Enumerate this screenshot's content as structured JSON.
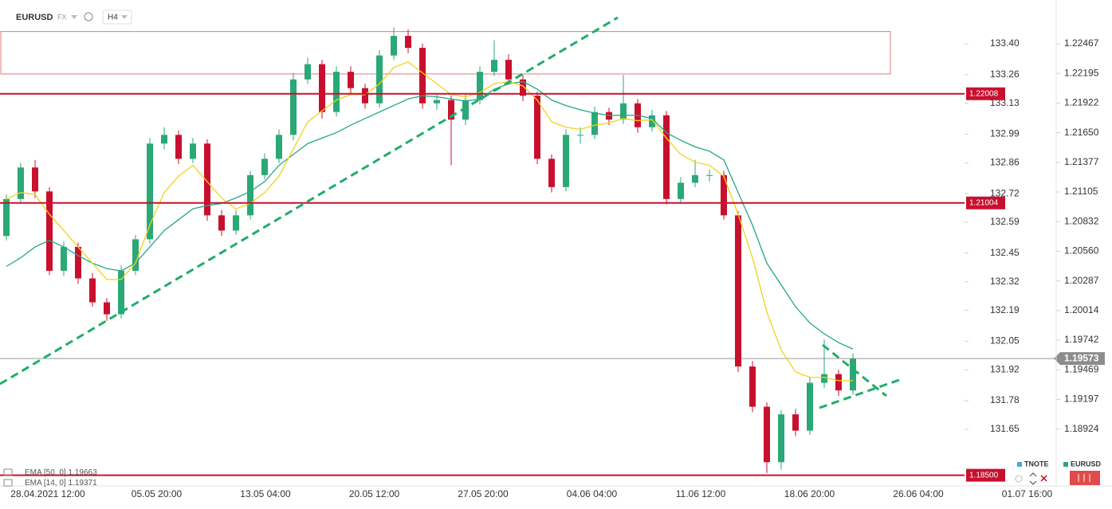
{
  "chart_data": {
    "type": "candlestick",
    "symbol": "EURUSD",
    "market": "FX",
    "timeframe": "H4",
    "ylim": [
      1.18402,
      1.22797
    ],
    "yticks": [
      1.22467,
      1.22195,
      1.21922,
      {
        "value": 1.2165,
        "label": "1.21650"
      },
      1.21377,
      1.21105,
      1.20832,
      {
        "value": 1.2056,
        "label": "1.20560"
      },
      1.20287,
      1.20014,
      1.19742,
      1.19469,
      1.19197,
      1.18924
    ],
    "y2lim": [
      131.393,
      133.563
    ],
    "y2ticks": [
      {
        "value": 133.4,
        "label": "133.40"
      },
      133.26,
      133.13,
      132.99,
      132.86,
      132.72,
      132.59,
      132.45,
      132.32,
      132.19,
      132.05,
      131.92,
      131.78,
      131.65
    ],
    "xaxis_labels": [
      "28.04.2021 12:00",
      "05.05 20:00",
      "13.05 04:00",
      "20.05 12:00",
      "27.05 20:00",
      "04.06 04:00",
      "11.06 12:00",
      "18.06 20:00",
      "26.06 04:00",
      "01.07 16:00"
    ],
    "up_color": "#2aa876",
    "down_color": "#c8102e",
    "candles": {
      "open": [
        1.207,
        1.2104,
        1.2133,
        1.2111,
        1.2038,
        1.206,
        1.2031,
        1.2009,
        1.1998,
        1.2038,
        1.2067,
        1.2155,
        1.2163,
        1.2141,
        1.2155,
        1.2089,
        1.2075,
        1.2089,
        1.2126,
        1.2141,
        1.2163,
        1.2214,
        1.2228,
        1.2184,
        1.2221,
        1.2206,
        1.2192,
        1.2236,
        1.2254,
        1.2243,
        1.2192,
        1.2195,
        1.2177,
        1.2195,
        1.2221,
        1.2232,
        1.2214,
        1.2199,
        1.2141,
        1.2115,
        1.2163,
        1.2163,
        1.2184,
        1.2177,
        1.2192,
        1.217,
        1.2181,
        1.2104,
        1.2119,
        1.2126,
        1.2126,
        1.2089,
        1.195,
        1.1913,
        1.1862,
        1.1906,
        1.1891,
        1.1935,
        1.1943,
        1.1928
      ],
      "high": [
        1.2108,
        1.2137,
        1.214,
        1.2115,
        1.2065,
        1.2064,
        1.2036,
        1.2013,
        1.2043,
        1.2071,
        1.216,
        1.217,
        1.2167,
        1.216,
        1.2159,
        1.2094,
        1.2094,
        1.213,
        1.2146,
        1.2168,
        1.222,
        1.2234,
        1.2232,
        1.2226,
        1.2226,
        1.221,
        1.2241,
        1.2262,
        1.226,
        1.2247,
        1.22,
        1.2199,
        1.22,
        1.2226,
        1.225,
        1.2237,
        1.2218,
        1.2203,
        1.2145,
        1.2168,
        1.217,
        1.2189,
        1.2188,
        1.2218,
        1.2196,
        1.2186,
        1.2185,
        1.2124,
        1.214,
        1.2131,
        1.213,
        1.2093,
        1.1955,
        1.1917,
        1.191,
        1.1911,
        1.194,
        1.1975,
        1.1947,
        1.1962
      ],
      "low": [
        1.2066,
        1.21,
        1.2105,
        1.2034,
        1.2033,
        1.2026,
        1.2005,
        1.1992,
        1.1994,
        1.2034,
        1.2063,
        1.215,
        1.2136,
        1.2137,
        1.2084,
        1.207,
        1.2071,
        1.2085,
        1.2122,
        1.2137,
        1.2158,
        1.221,
        1.2178,
        1.218,
        1.22,
        1.2187,
        1.2188,
        1.2232,
        1.2238,
        1.2187,
        1.2186,
        1.2135,
        1.2172,
        1.2191,
        1.2217,
        1.2209,
        1.2194,
        1.2136,
        1.211,
        1.2111,
        1.2155,
        1.2159,
        1.2172,
        1.2173,
        1.2165,
        1.2166,
        1.2099,
        1.21,
        1.2115,
        1.212,
        1.2085,
        1.1945,
        1.1908,
        1.1852,
        1.1855,
        1.1886,
        1.1887,
        1.193,
        1.1923,
        1.1924
      ],
      "close": [
        1.2104,
        1.2133,
        1.2111,
        1.2038,
        1.206,
        1.2031,
        1.2009,
        1.1998,
        1.2038,
        1.2067,
        1.2155,
        1.2163,
        1.2141,
        1.2155,
        1.2089,
        1.2075,
        1.2089,
        1.2126,
        1.2141,
        1.2163,
        1.2214,
        1.2228,
        1.2184,
        1.2221,
        1.2206,
        1.2192,
        1.2236,
        1.2254,
        1.2243,
        1.2192,
        1.2195,
        1.2177,
        1.2195,
        1.2221,
        1.2232,
        1.2214,
        1.2199,
        1.2141,
        1.2115,
        1.2163,
        1.2163,
        1.2184,
        1.2177,
        1.2192,
        1.217,
        1.2181,
        1.2104,
        1.2119,
        1.2126,
        1.2126,
        1.2089,
        1.195,
        1.1913,
        1.1862,
        1.1906,
        1.1891,
        1.1935,
        1.1943,
        1.1928,
        1.1957
      ]
    },
    "indicators": [
      {
        "name": "EMA [50, 0]",
        "last": 1.19663,
        "color": "#22a884",
        "values": [
          1.2042,
          1.205,
          1.206,
          1.2066,
          1.206,
          1.2052,
          1.2045,
          1.204,
          1.2038,
          1.2045,
          1.206,
          1.2075,
          1.2085,
          1.2095,
          1.2098,
          1.21,
          1.2105,
          1.2111,
          1.212,
          1.2135,
          1.2145,
          1.2155,
          1.216,
          1.2165,
          1.2172,
          1.2178,
          1.2184,
          1.219,
          1.2196,
          1.2199,
          1.2198,
          1.2196,
          1.2194,
          1.2196,
          1.2205,
          1.221,
          1.2212,
          1.2205,
          1.2195,
          1.219,
          1.2186,
          1.2183,
          1.2181,
          1.2181,
          1.2181,
          1.2178,
          1.2165,
          1.2158,
          1.2152,
          1.2148,
          1.214,
          1.211,
          1.208,
          1.2045,
          1.2025,
          1.2005,
          1.199,
          1.198,
          1.1972,
          1.1966
        ]
      },
      {
        "name": "EMA [14, 0]",
        "last": 1.19371,
        "color": "#f2d21b",
        "values": [
          1.2104,
          1.211,
          1.2108,
          1.209,
          1.2075,
          1.206,
          1.2045,
          1.203,
          1.203,
          1.2045,
          1.208,
          1.211,
          1.2125,
          1.2135,
          1.212,
          1.2105,
          1.2095,
          1.21,
          1.211,
          1.2125,
          1.215,
          1.2175,
          1.2185,
          1.2195,
          1.22,
          1.22,
          1.221,
          1.2225,
          1.223,
          1.222,
          1.221,
          1.22,
          1.2198,
          1.2202,
          1.221,
          1.2212,
          1.2208,
          1.2195,
          1.2175,
          1.217,
          1.2168,
          1.2172,
          1.2174,
          1.2178,
          1.2176,
          1.2177,
          1.216,
          1.2145,
          1.2138,
          1.2135,
          1.2125,
          1.209,
          1.205,
          1.2,
          1.1965,
          1.1945,
          1.194,
          1.194,
          1.1937,
          1.1937
        ]
      }
    ],
    "zone": [
      1.2258,
      1.2219
    ],
    "levels": [
      1.22008,
      1.21004,
      {
        "value": 1.185,
        "label": "1.18500"
      }
    ],
    "current_price": 1.19573,
    "legend": [
      {
        "name": "TNOTE",
        "color": "#4aa8e0"
      },
      {
        "name": "EURUSD",
        "color": "#2aa876"
      }
    ]
  }
}
